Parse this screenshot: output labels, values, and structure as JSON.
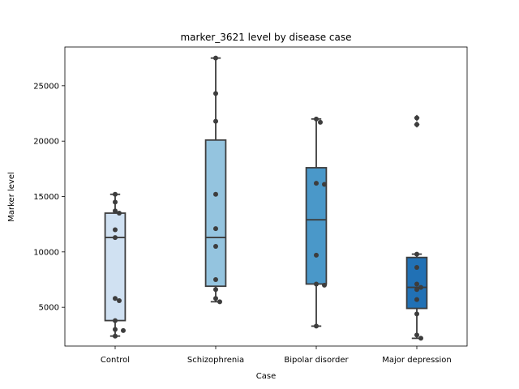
{
  "chart_data": {
    "type": "box",
    "title": "marker_3621 level by disease case",
    "xlabel": "Case",
    "ylabel": "Marker level",
    "categories": [
      "Control",
      "Schizophrenia",
      "Bipolar disorder",
      "Major depression"
    ],
    "yticks": [
      5000,
      10000,
      15000,
      20000,
      25000
    ],
    "ylim": [
      1500,
      28500
    ],
    "colors": [
      "#d0e1f2",
      "#94c4df",
      "#4a98c9",
      "#2171b5"
    ],
    "boxes": [
      {
        "category": "Control",
        "whisker_low": 2400,
        "q1": 3800,
        "median": 11300,
        "q3": 13500,
        "whisker_high": 15200,
        "outliers": []
      },
      {
        "category": "Schizophrenia",
        "whisker_low": 5500,
        "q1": 6900,
        "median": 11300,
        "q3": 20100,
        "whisker_high": 27500,
        "outliers": []
      },
      {
        "category": "Bipolar disorder",
        "whisker_low": 3300,
        "q1": 7100,
        "median": 12900,
        "q3": 17600,
        "whisker_high": 22000,
        "outliers": []
      },
      {
        "category": "Major depression",
        "whisker_low": 2200,
        "q1": 4900,
        "median": 6800,
        "q3": 9500,
        "whisker_high": 9800,
        "outliers": [
          21500,
          22100
        ]
      }
    ],
    "points": [
      {
        "category": "Control",
        "values": [
          15200,
          14500,
          13700,
          13500,
          12000,
          11300,
          5800,
          5600,
          3800,
          3000,
          2900,
          2400
        ]
      },
      {
        "category": "Schizophrenia",
        "values": [
          27500,
          24300,
          21800,
          15200,
          12100,
          10500,
          7500,
          6600,
          5800,
          5500
        ]
      },
      {
        "category": "Bipolar disorder",
        "values": [
          22000,
          21700,
          16200,
          16100,
          9700,
          7100,
          7000,
          3300
        ]
      },
      {
        "category": "Major depression",
        "values": [
          22100,
          21500,
          9800,
          8600,
          7100,
          6800,
          6600,
          5700,
          4400,
          2500,
          2200
        ]
      }
    ]
  }
}
